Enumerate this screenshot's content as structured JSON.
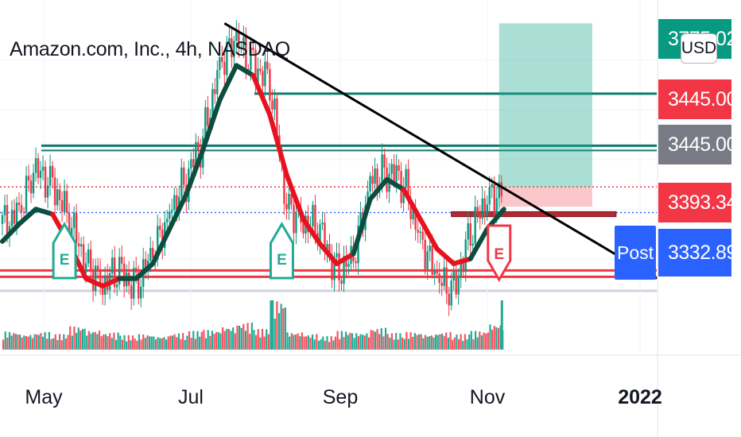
{
  "header": {
    "symbol_title": "Amazon.com, Inc., 4h, NASDAQ",
    "currency_button": "USD"
  },
  "price_labels": [
    {
      "key": "target",
      "text": "3775.02",
      "color": "#089981"
    },
    {
      "key": "last",
      "text": "3445.00",
      "color": "#f23645"
    },
    {
      "key": "crosshair",
      "text": "3445.00",
      "color": "#787b86"
    },
    {
      "key": "mid",
      "text": "3393.34",
      "color": "#f23645"
    },
    {
      "key": "post",
      "text": "3332.89",
      "color": "#2962ff"
    }
  ],
  "post_badge": "Post",
  "earnings_markers": [
    {
      "label": "E",
      "x": "2021-04-29",
      "status": "reported",
      "color": "#22ab94"
    },
    {
      "label": "E",
      "x": "2021-07-29",
      "status": "reported",
      "color": "#22ab94"
    },
    {
      "label": "E",
      "x": "2021-10-28",
      "status": "upcoming",
      "color": "#f23645"
    }
  ],
  "chart_data": {
    "type": "line",
    "title": "Amazon.com, Inc., 4h, NASDAQ",
    "x_axis": {
      "ticks": [
        "May",
        "Jul",
        "Sep",
        "Nov",
        "2022"
      ],
      "range": [
        "2021-04-02",
        "2022-01-02"
      ]
    },
    "y_axis": {
      "range": [
        3245,
        3790
      ],
      "side": "right",
      "labels": [
        "3775.02",
        "3445.00",
        "3445.00",
        "3393.34",
        "3332.89"
      ]
    },
    "series": [
      {
        "name": "",
        "style": "candles",
        "x": [
          "2021-04-03",
          "2021-04-10",
          "2021-04-17",
          "2021-04-24",
          "2021-05-01",
          "2021-05-08",
          "2021-05-15",
          "2021-05-22",
          "2021-05-29",
          "2021-06-05",
          "2021-06-12",
          "2021-06-19",
          "2021-06-26",
          "2021-07-03",
          "2021-07-10",
          "2021-07-17",
          "2021-07-24",
          "2021-07-31",
          "2021-08-07",
          "2021-08-14",
          "2021-08-21",
          "2021-08-28",
          "2021-09-04",
          "2021-09-11",
          "2021-09-18",
          "2021-09-25",
          "2021-10-02",
          "2021-10-09",
          "2021-10-16",
          "2021-10-23",
          "2021-10-30"
        ],
        "values": [
          3370,
          3400,
          3470,
          3460,
          3370,
          3300,
          3250,
          3270,
          3250,
          3300,
          3400,
          3460,
          3540,
          3700,
          3730,
          3700,
          3650,
          3410,
          3380,
          3350,
          3280,
          3290,
          3460,
          3480,
          3450,
          3350,
          3250,
          3240,
          3350,
          3420,
          3445
        ]
      },
      {
        "name": "",
        "style": "trend-colored moving average",
        "x": [
          "2021-04-03",
          "2021-04-10",
          "2021-04-17",
          "2021-04-24",
          "2021-05-01",
          "2021-05-08",
          "2021-05-15",
          "2021-05-22",
          "2021-05-29",
          "2021-06-05",
          "2021-06-12",
          "2021-06-19",
          "2021-06-26",
          "2021-07-03",
          "2021-07-10",
          "2021-07-17",
          "2021-07-24",
          "2021-07-31",
          "2021-08-07",
          "2021-08-14",
          "2021-08-21",
          "2021-08-28",
          "2021-09-04",
          "2021-09-11",
          "2021-09-18",
          "2021-09-25",
          "2021-10-02",
          "2021-10-09",
          "2021-10-16",
          "2021-10-23",
          "2021-10-30"
        ],
        "values": [
          3335,
          3370,
          3400,
          3390,
          3330,
          3260,
          3245,
          3260,
          3260,
          3290,
          3360,
          3430,
          3520,
          3620,
          3690,
          3670,
          3590,
          3470,
          3380,
          3330,
          3290,
          3310,
          3420,
          3460,
          3440,
          3380,
          3320,
          3290,
          3300,
          3360,
          3400
        ],
        "trend": [
          "up",
          "up",
          "up",
          "down",
          "down",
          "down",
          "down",
          "up",
          "up",
          "up",
          "up",
          "up",
          "up",
          "up",
          "up",
          "down",
          "down",
          "down",
          "down",
          "down",
          "down",
          "up",
          "up",
          "up",
          "down",
          "down",
          "down",
          "down",
          "up",
          "up",
          "up"
        ]
      }
    ],
    "levels": [
      {
        "name": "resistance",
        "value": 3630,
        "color": "#0e7a6a"
      },
      {
        "name": "resistance",
        "value": 3525,
        "color": "#0e7a6a"
      },
      {
        "name": "last",
        "value": 3445,
        "color": "#f23645"
      },
      {
        "name": "mid",
        "value": 3393.34,
        "color": "#2962ff"
      },
      {
        "name": "support",
        "value": 3270,
        "color": "#f23645"
      }
    ],
    "trendline": {
      "x": [
        "2021-07-05",
        "2022-01-02"
      ],
      "y": [
        3775,
        3260
      ]
    },
    "position": {
      "entry": 3445,
      "target": 3775.02,
      "stop": 3405,
      "x": [
        "2021-10-28",
        "2021-12-06"
      ]
    },
    "demand_zone": {
      "y": [
        3385,
        3395
      ],
      "x": [
        "2021-10-08",
        "2021-12-16"
      ]
    },
    "volume": {
      "x": [
        "2021-04-03",
        "2021-04-10",
        "2021-04-17",
        "2021-04-24",
        "2021-05-01",
        "2021-05-08",
        "2021-05-15",
        "2021-05-22",
        "2021-05-29",
        "2021-06-05",
        "2021-06-12",
        "2021-06-19",
        "2021-06-26",
        "2021-07-03",
        "2021-07-10",
        "2021-07-17",
        "2021-07-24",
        "2021-07-31",
        "2021-08-07",
        "2021-08-14",
        "2021-08-21",
        "2021-08-28",
        "2021-09-04",
        "2021-09-11",
        "2021-09-18",
        "2021-09-25",
        "2021-10-02",
        "2021-10-09",
        "2021-10-16",
        "2021-10-23",
        "2021-10-30"
      ],
      "values": [
        35,
        30,
        34,
        30,
        45,
        38,
        33,
        28,
        30,
        26,
        32,
        36,
        38,
        45,
        52,
        40,
        95,
        34,
        30,
        26,
        36,
        33,
        42,
        32,
        34,
        30,
        34,
        30,
        36,
        50,
        95
      ]
    },
    "grid": true,
    "legend": "none"
  }
}
